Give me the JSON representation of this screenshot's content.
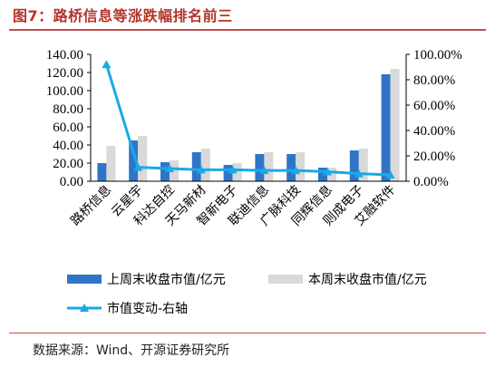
{
  "figure": {
    "title": "图7：路桥信息等涨跌幅排名前三",
    "source": "数据来源：Wind、开源证券研究所"
  },
  "colors": {
    "this_week": "#2e75c8",
    "last_week": "#d9d9d9",
    "change": "#1aa9e6",
    "title": "#b4332a"
  },
  "chart_data": {
    "type": "bar",
    "categories": [
      "路桥信息",
      "云星宇",
      "科达自控",
      "天马新材",
      "智新电子",
      "联迪信息",
      "广脉科技",
      "同辉信息",
      "则成电子",
      "艾融软件"
    ],
    "series": [
      {
        "name": "上周末收盘市值/亿元",
        "type": "bar",
        "axis": "left",
        "values": [
          20,
          45,
          21,
          32,
          18,
          30,
          30,
          15,
          34,
          118
        ]
      },
      {
        "name": "本周末收盘市值/亿元",
        "type": "bar",
        "axis": "left",
        "values": [
          39,
          50,
          23,
          36,
          20,
          32,
          32,
          15,
          36,
          124
        ]
      },
      {
        "name": "市值变动-右轴",
        "type": "line",
        "axis": "right",
        "marker": "triangle",
        "values": [
          92.0,
          11.0,
          10.0,
          9.0,
          9.0,
          8.5,
          8.5,
          7.5,
          6.0,
          5.0
        ]
      }
    ],
    "y_left": {
      "min": 0,
      "max": 140,
      "ticks": [
        "0.00",
        "20.00",
        "40.00",
        "60.00",
        "80.00",
        "100.00",
        "120.00",
        "140.00"
      ]
    },
    "y_right": {
      "min": 0,
      "max": 100,
      "ticks": [
        "0.00%",
        "20.00%",
        "40.00%",
        "60.00%",
        "80.00%",
        "100.00%"
      ]
    },
    "grid": false,
    "legend_position": "bottom"
  }
}
